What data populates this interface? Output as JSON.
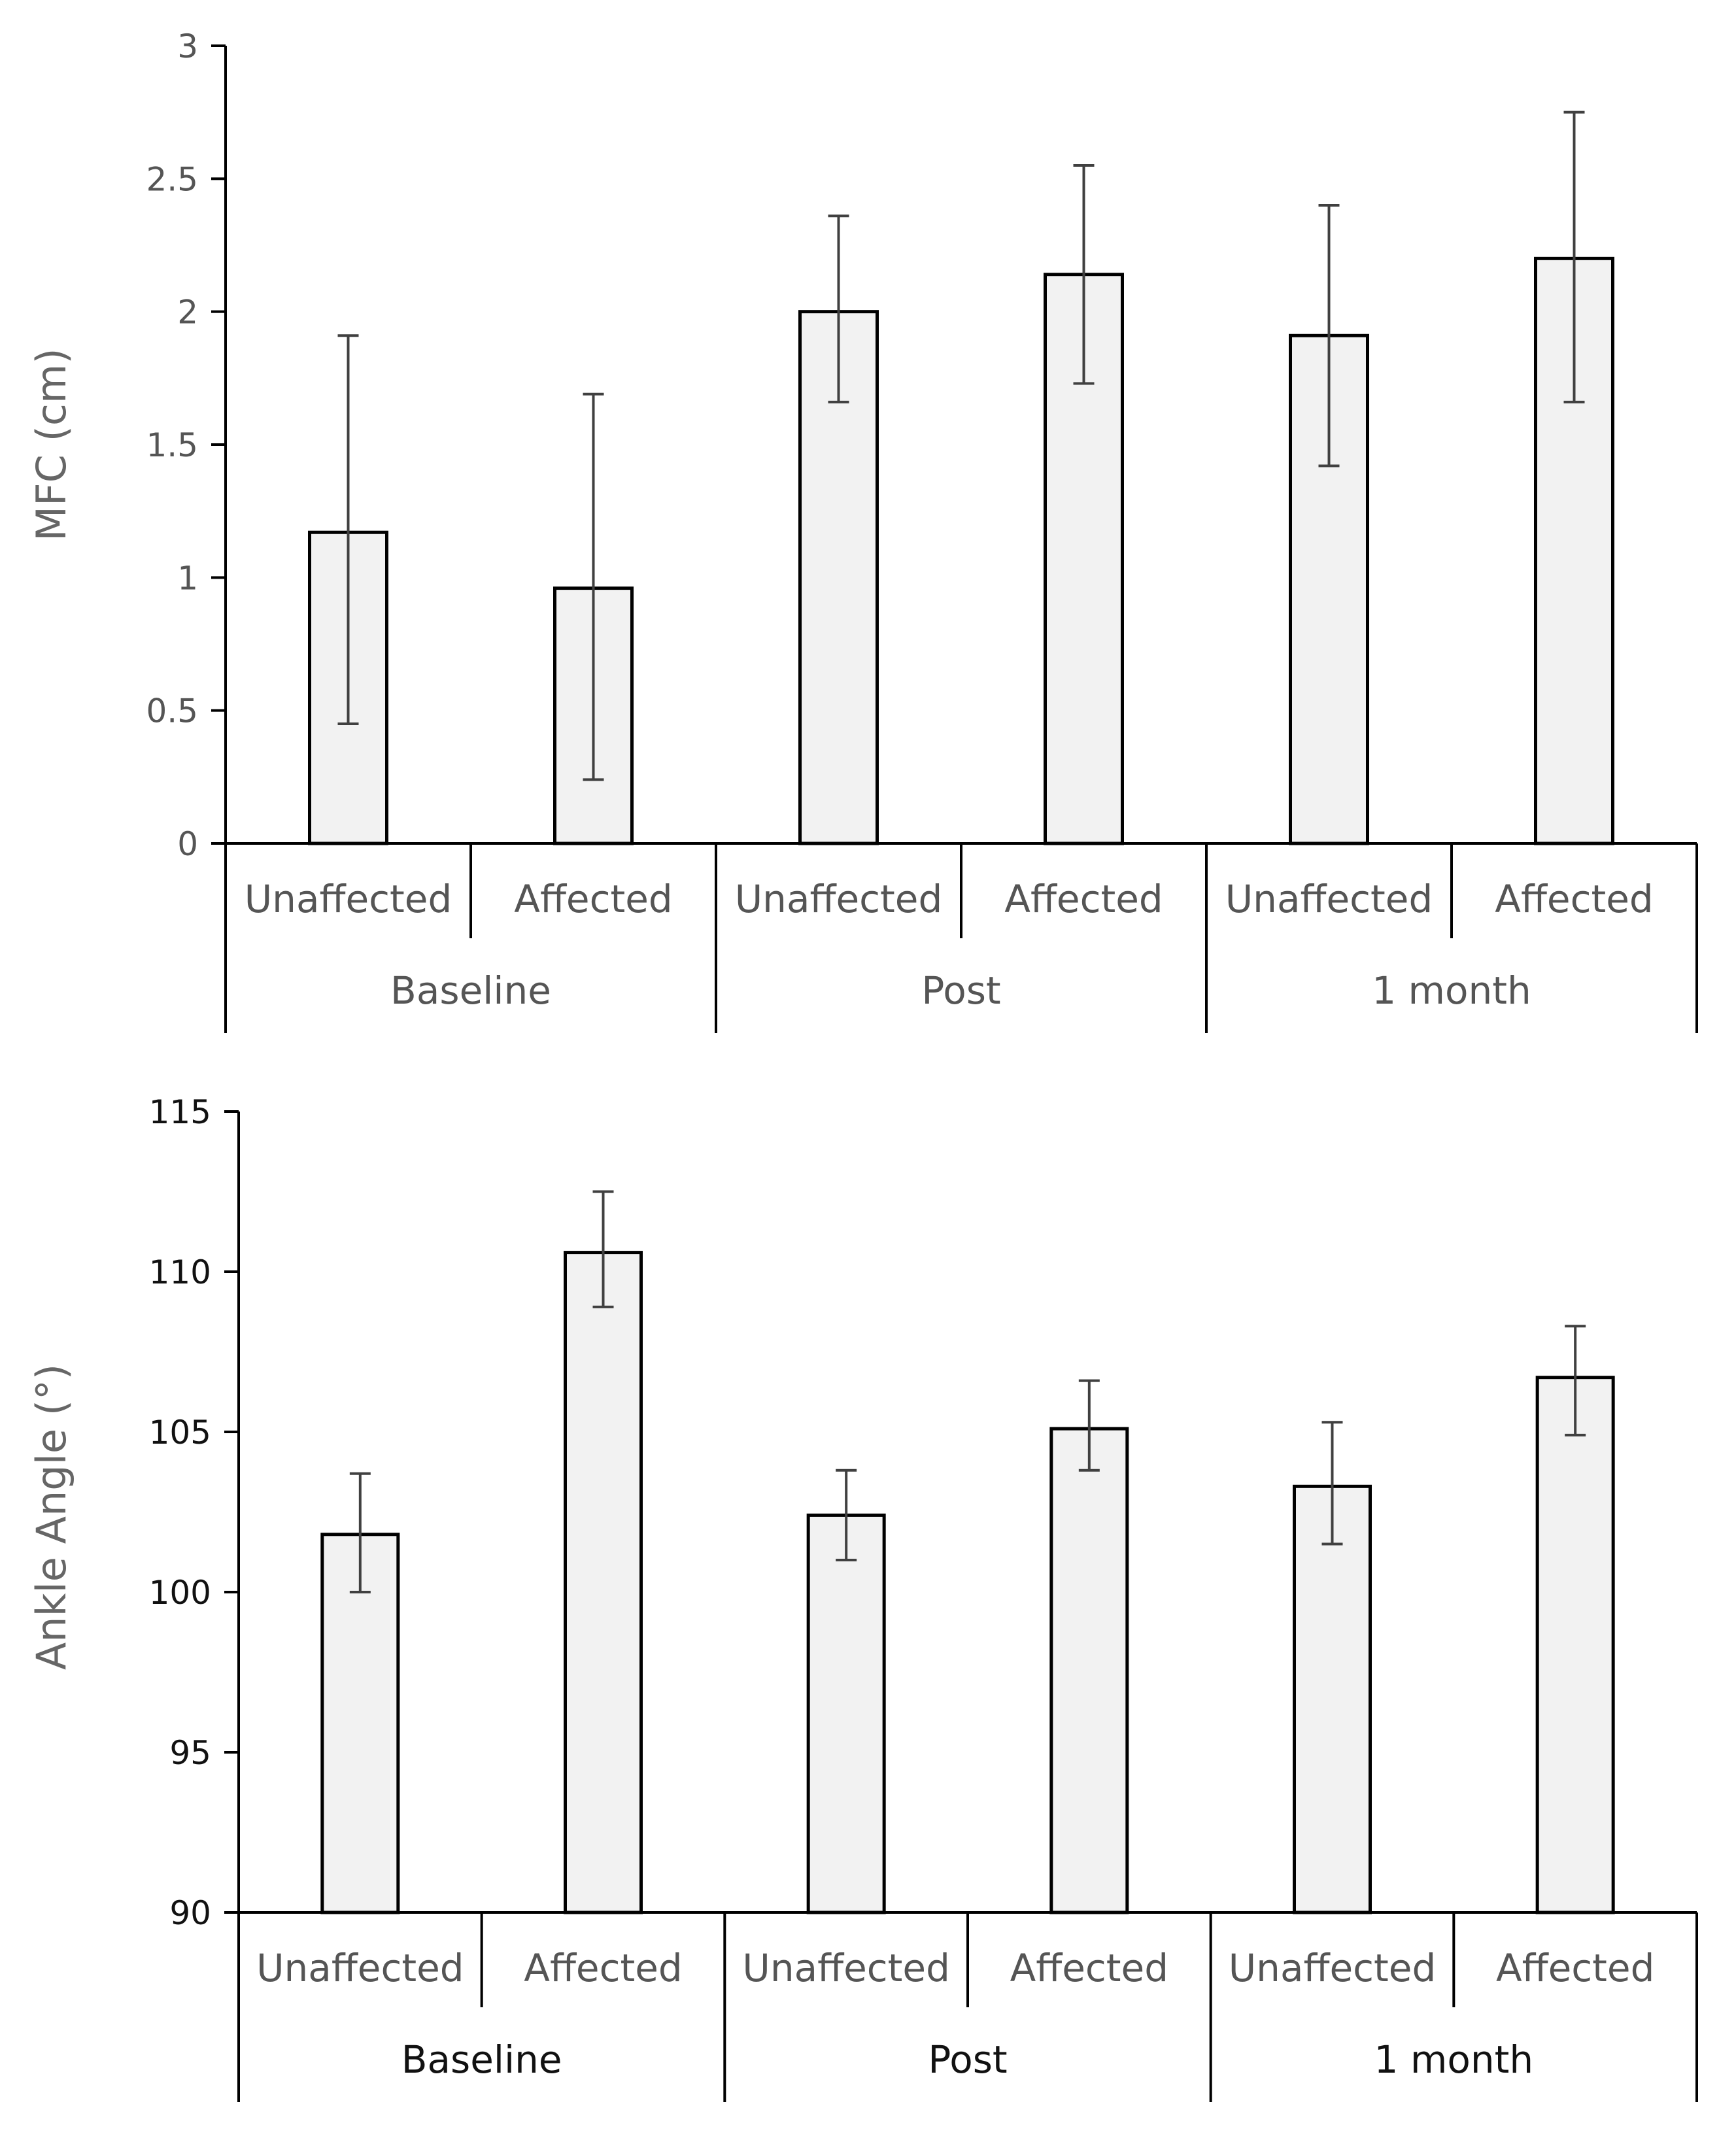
{
  "chart_data": [
    {
      "type": "bar",
      "title": "",
      "xlabel": "",
      "ylabel": "MFC (cm)",
      "ylim": [
        0,
        3
      ],
      "yticks": [
        0,
        0.5,
        1,
        1.5,
        2,
        2.5,
        3
      ],
      "ytick_labels": [
        "0",
        "0.5",
        "1",
        "1.5",
        "2",
        "2.5",
        "3"
      ],
      "categories": [
        "Unaffected",
        "Affected",
        "Unaffected",
        "Affected",
        "Unaffected",
        "Affected"
      ],
      "groups": [
        "Baseline",
        "Post",
        "1 month"
      ],
      "values": [
        1.17,
        0.96,
        2.0,
        2.14,
        1.91,
        2.2
      ],
      "error_low": [
        0.45,
        0.24,
        1.66,
        1.73,
        1.42,
        1.66
      ],
      "error_high": [
        1.91,
        1.69,
        2.36,
        2.55,
        2.4,
        2.75
      ],
      "tick_color": "#555555",
      "group_label_color": "#555555",
      "bar_fill": "#f2f2f2",
      "bar_stroke": "#000000",
      "error_color": "#404040"
    },
    {
      "type": "bar",
      "title": "",
      "xlabel": "",
      "ylabel": "Ankle Angle (°)",
      "ylim": [
        90,
        115
      ],
      "yticks": [
        90,
        95,
        100,
        105,
        110,
        115
      ],
      "ytick_labels": [
        "90",
        "95",
        "100",
        "105",
        "110",
        "115"
      ],
      "categories": [
        "Unaffected",
        "Affected",
        "Unaffected",
        "Affected",
        "Unaffected",
        "Affected"
      ],
      "groups": [
        "Baseline",
        "Post",
        "1 month"
      ],
      "values": [
        101.8,
        110.6,
        102.4,
        105.1,
        103.3,
        106.7
      ],
      "error_low": [
        100.0,
        108.9,
        101.0,
        103.8,
        101.5,
        104.9
      ],
      "error_high": [
        103.7,
        112.5,
        103.8,
        106.6,
        105.3,
        108.3
      ],
      "tick_color": "#111111",
      "group_label_color": "#111111",
      "bar_fill": "#f2f2f2",
      "bar_stroke": "#000000",
      "error_color": "#404040"
    }
  ]
}
